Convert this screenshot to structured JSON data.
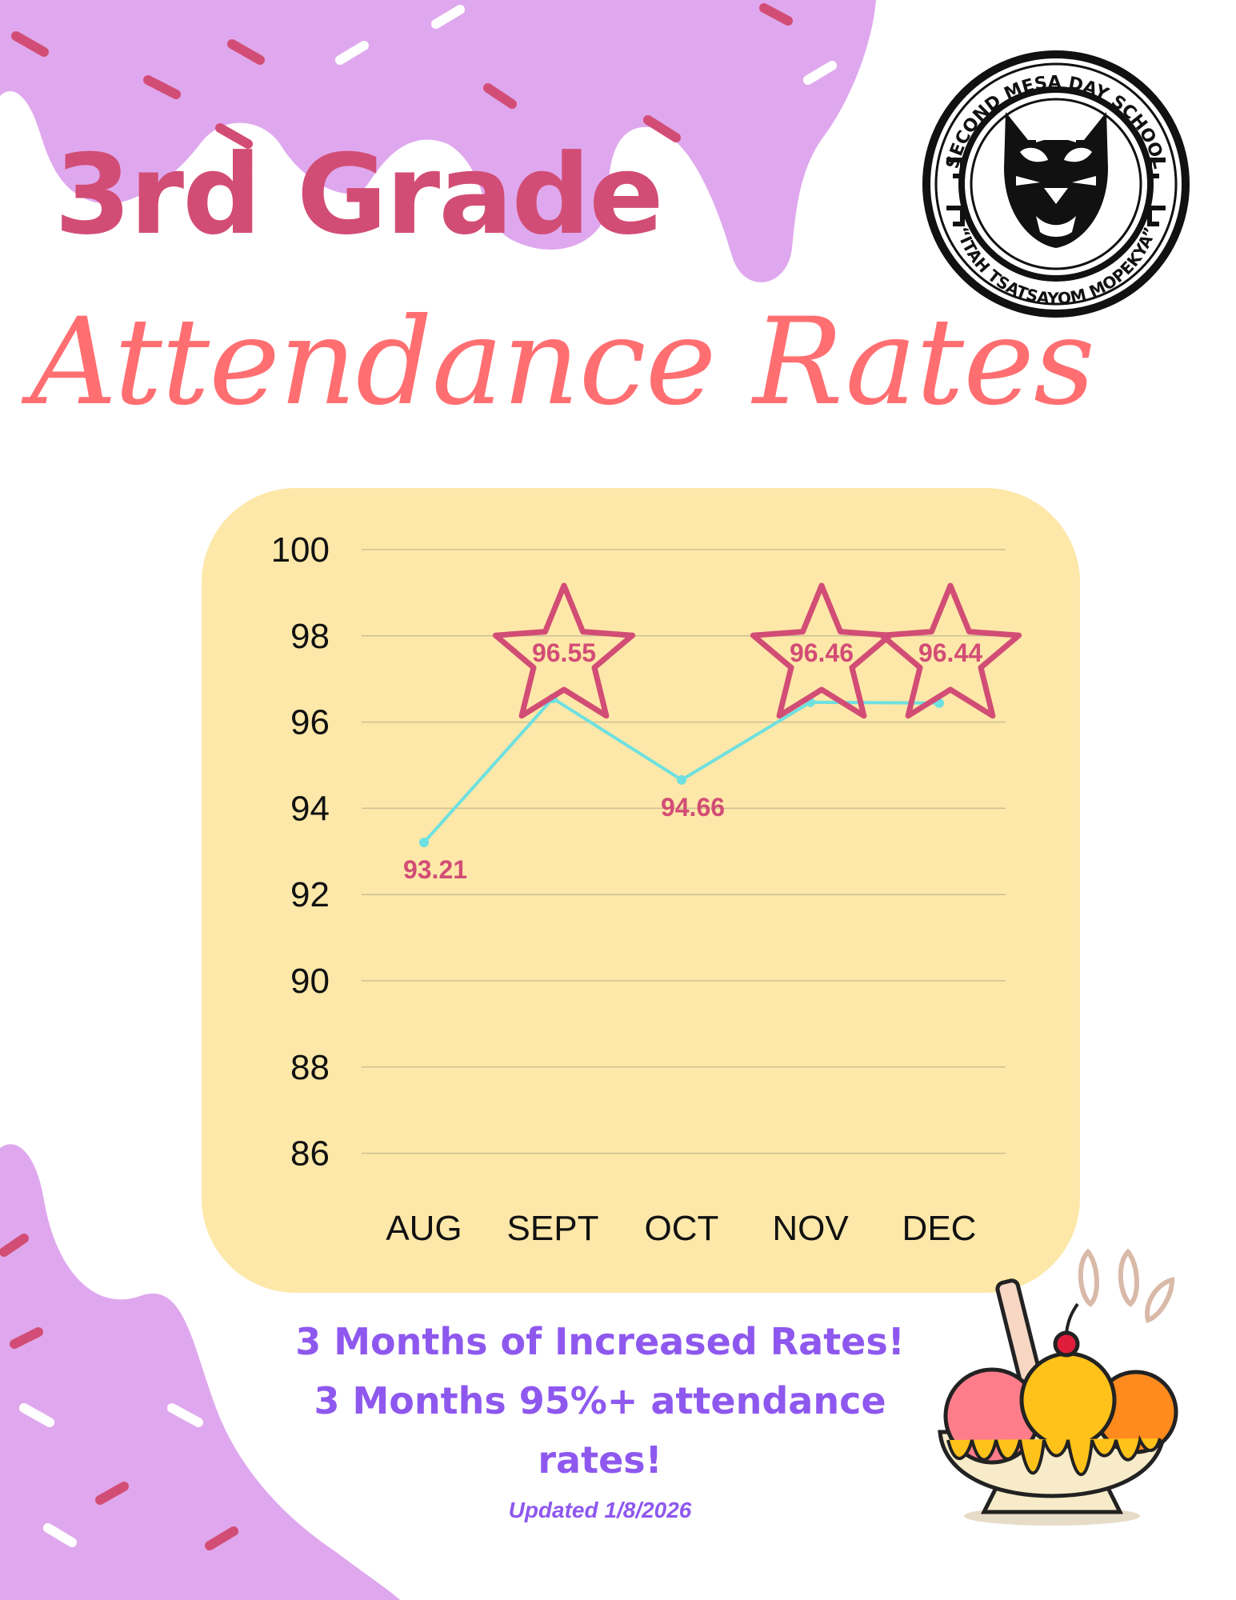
{
  "header": {
    "title_line1": "3rd Grade",
    "title_line2": "Attendance Rates"
  },
  "logo": {
    "top_text": "SECOND MESA DAY SCHOOL",
    "bottom_text": "“ITAH TSATSAYOM MOPEKYA”",
    "icon": "bobcat-emblem"
  },
  "chart_data": {
    "type": "line",
    "title": "",
    "xlabel": "",
    "ylabel": "",
    "categories": [
      "AUG",
      "SEPT",
      "OCT",
      "NOV",
      "DEC"
    ],
    "series": [
      {
        "values": [
          93.21,
          96.55,
          94.66,
          96.46,
          96.44
        ]
      }
    ],
    "data_labels": [
      "93.21",
      "96.55",
      "94.66",
      "96.46",
      "96.44"
    ],
    "starred": [
      false,
      true,
      false,
      true,
      true
    ],
    "yticks": [
      "86",
      "88",
      "90",
      "92",
      "94",
      "96",
      "98",
      "100"
    ],
    "ylim": [
      85,
      100
    ],
    "grid": true,
    "legend": "none",
    "colors": {
      "line": "#6ee0e0",
      "labels": "#d24d75",
      "star": "#d24d75",
      "panel": "#fde8a9"
    }
  },
  "footer": {
    "line1": "3 Months of  Increased Rates!",
    "line2": "3 Months 95%+ attendance",
    "line3": "rates!",
    "updated": "Updated 1/8/2026"
  },
  "decor": {
    "drips_color": "#dfa8ee",
    "sprinkle_colors": [
      "#d24d75",
      "#ffffff"
    ],
    "sundae_icon": "ice-cream-sundae-icon"
  }
}
